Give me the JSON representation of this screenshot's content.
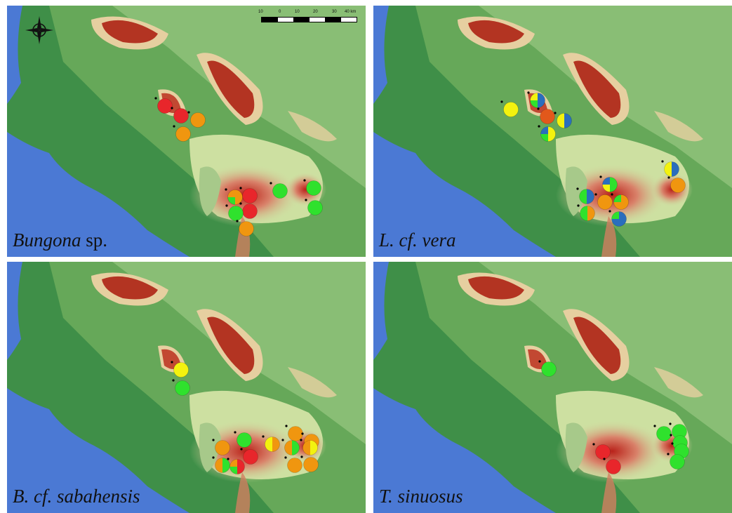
{
  "colors": {
    "sea": "#4b79d4",
    "lowland": "#3f8f48",
    "mid": "#8fc27a",
    "high": "#e6cfa0",
    "peak": "#b33422",
    "red": "#e8262b",
    "orange": "#f0960f",
    "green": "#2fe12d",
    "yellow": "#f3f20f",
    "blue": "#2a6ebd",
    "dark_orange": "#e2581b"
  },
  "scalebar": {
    "ticks": [
      "10",
      "0",
      "10",
      "20",
      "30",
      "40 km"
    ]
  },
  "compass": {
    "icon": "north-arrow-compass-icon"
  },
  "panels": [
    {
      "id": "bungona",
      "label_italic": "Bungona",
      "label_rest": " sp.",
      "pies": [
        {
          "slices": [
            [
              "red",
              1
            ]
          ]
        },
        {
          "slices": [
            [
              "red",
              1
            ]
          ]
        },
        {
          "slices": [
            [
              "orange",
              1
            ]
          ]
        },
        {
          "slices": [
            [
              "orange",
              1
            ]
          ]
        },
        {
          "slices": [
            [
              "orange",
              0.5
            ],
            [
              "green",
              0.25
            ],
            [
              "orange",
              0.25
            ]
          ]
        },
        {
          "slices": [
            [
              "red",
              1
            ]
          ]
        },
        {
          "slices": [
            [
              "red",
              1
            ]
          ]
        },
        {
          "slices": [
            [
              "green",
              1
            ]
          ]
        },
        {
          "slices": [
            [
              "orange",
              1
            ]
          ]
        },
        {
          "slices": [
            [
              "green",
              1
            ]
          ]
        },
        {
          "slices": [
            [
              "green",
              1
            ]
          ]
        },
        {
          "slices": [
            [
              "green",
              1
            ]
          ]
        }
      ]
    },
    {
      "id": "lvera",
      "label_italic": "L. cf. vera",
      "label_rest": "",
      "pies": [
        {
          "slices": [
            [
              "yellow",
              1
            ]
          ]
        },
        {
          "slices": [
            [
              "blue",
              0.5
            ],
            [
              "green",
              0.25
            ],
            [
              "yellow",
              0.25
            ]
          ]
        },
        {
          "slices": [
            [
              "dark_orange",
              1
            ]
          ]
        },
        {
          "slices": [
            [
              "blue",
              0.5
            ],
            [
              "yellow",
              0.5
            ]
          ]
        },
        {
          "slices": [
            [
              "yellow",
              0.5
            ],
            [
              "green",
              0.25
            ],
            [
              "blue",
              0.25
            ]
          ]
        },
        {
          "slices": [
            [
              "blue",
              0.5
            ],
            [
              "yellow",
              0.5
            ]
          ]
        },
        {
          "slices": [
            [
              "orange",
              1
            ]
          ]
        },
        {
          "slices": [
            [
              "green",
              0.5
            ],
            [
              "yellow",
              0.25
            ],
            [
              "blue",
              0.25
            ]
          ]
        },
        {
          "slices": [
            [
              "blue",
              0.5
            ],
            [
              "green",
              0.5
            ]
          ]
        },
        {
          "slices": [
            [
              "orange",
              0.5
            ],
            [
              "green",
              0.5
            ]
          ]
        },
        {
          "slices": [
            [
              "orange",
              1
            ]
          ]
        },
        {
          "slices": [
            [
              "orange",
              0.75
            ],
            [
              "green",
              0.25
            ]
          ]
        },
        {
          "slices": [
            [
              "blue",
              0.75
            ],
            [
              "green",
              0.25
            ]
          ]
        }
      ]
    },
    {
      "id": "bsabahensis",
      "label_italic": "B. cf. sabahensis",
      "label_rest": "",
      "pies": [
        {
          "slices": [
            [
              "yellow",
              1
            ]
          ]
        },
        {
          "slices": [
            [
              "green",
              1
            ]
          ]
        },
        {
          "slices": [
            [
              "orange",
              1
            ]
          ]
        },
        {
          "slices": [
            [
              "green",
              1
            ]
          ]
        },
        {
          "slices": [
            [
              "orange",
              0.5
            ],
            [
              "yellow",
              0.5
            ]
          ]
        },
        {
          "slices": [
            [
              "green",
              0.5
            ],
            [
              "orange",
              0.5
            ]
          ]
        },
        {
          "slices": [
            [
              "red",
              0.5
            ],
            [
              "green",
              0.25
            ],
            [
              "orange",
              0.25
            ]
          ]
        },
        {
          "slices": [
            [
              "red",
              1
            ]
          ]
        },
        {
          "slices": [
            [
              "orange",
              1
            ]
          ]
        },
        {
          "slices": [
            [
              "orange",
              1
            ]
          ]
        },
        {
          "slices": [
            [
              "green",
              0.5
            ],
            [
              "orange",
              0.5
            ]
          ]
        },
        {
          "slices": [
            [
              "yellow",
              0.5
            ],
            [
              "orange",
              0.5
            ]
          ]
        },
        {
          "slices": [
            [
              "orange",
              1
            ]
          ]
        },
        {
          "slices": [
            [
              "orange",
              1
            ]
          ]
        }
      ]
    },
    {
      "id": "tsinuosus",
      "label_italic": "T. sinuosus",
      "label_rest": "",
      "pies": [
        {
          "slices": [
            [
              "green",
              1
            ]
          ]
        },
        {
          "slices": [
            [
              "red",
              1
            ]
          ]
        },
        {
          "slices": [
            [
              "red",
              1
            ]
          ]
        },
        {
          "slices": [
            [
              "green",
              1
            ]
          ]
        },
        {
          "slices": [
            [
              "green",
              1
            ]
          ]
        },
        {
          "slices": [
            [
              "green",
              1
            ]
          ]
        },
        {
          "slices": [
            [
              "green",
              1
            ]
          ]
        },
        {
          "slices": [
            [
              "green",
              1
            ]
          ]
        }
      ]
    }
  ]
}
